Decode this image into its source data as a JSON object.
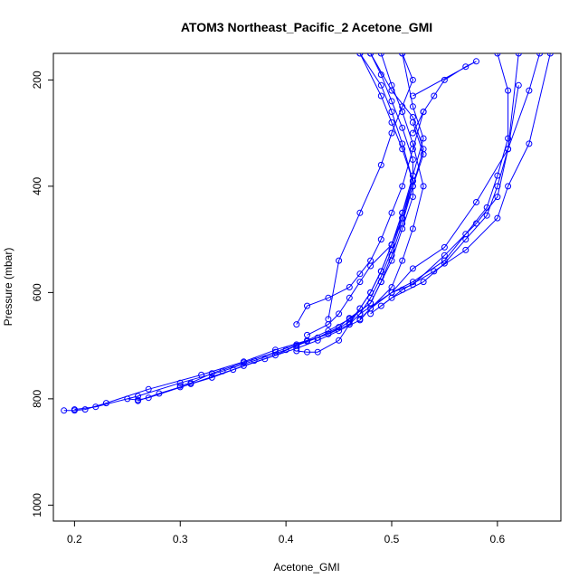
{
  "chart_data": {
    "type": "line",
    "title": "ATOM3 Northeast_Pacific_2 Acetone_GMI",
    "xlabel": "Acetone_GMI",
    "ylabel": "Pressure (mbar)",
    "xlim": [
      0.18,
      0.66
    ],
    "ylim": [
      1030,
      150
    ],
    "y_reversed": true,
    "xticks": [
      0.2,
      0.3,
      0.4,
      0.5,
      0.6
    ],
    "xtick_labels": [
      "0.2",
      "0.3",
      "0.4",
      "0.5",
      "0.6"
    ],
    "yticks": [
      200,
      400,
      600,
      800,
      1000
    ],
    "ytick_labels": [
      "200",
      "400",
      "600",
      "800",
      "1000"
    ],
    "grid": false,
    "color": "#0000ff",
    "series": [
      {
        "x": [
          0.19,
          0.2,
          0.21,
          0.23,
          0.27,
          0.32,
          0.36,
          0.39,
          0.42,
          0.44,
          0.46,
          0.48,
          0.49,
          0.5,
          0.51,
          0.52,
          0.52,
          0.51,
          0.5,
          0.49,
          0.48
        ],
        "y": [
          822,
          822,
          820,
          808,
          782,
          755,
          730,
          708,
          690,
          672,
          650,
          620,
          580,
          540,
          480,
          420,
          350,
          290,
          240,
          190,
          150
        ]
      },
      {
        "x": [
          0.2,
          0.22,
          0.26,
          0.3,
          0.34,
          0.37,
          0.4,
          0.42,
          0.44,
          0.46,
          0.47,
          0.48,
          0.49,
          0.5,
          0.51,
          0.52,
          0.51,
          0.5,
          0.49,
          0.47
        ],
        "y": [
          820,
          815,
          795,
          770,
          748,
          728,
          708,
          692,
          678,
          660,
          640,
          610,
          570,
          520,
          460,
          390,
          320,
          260,
          210,
          150
        ]
      },
      {
        "x": [
          0.25,
          0.26,
          0.27,
          0.31,
          0.35,
          0.38,
          0.41,
          0.43,
          0.45,
          0.47,
          0.48,
          0.5,
          0.51,
          0.52,
          0.53,
          0.52,
          0.51,
          0.5,
          0.49
        ],
        "y": [
          800,
          802,
          798,
          772,
          745,
          725,
          705,
          690,
          672,
          652,
          630,
          590,
          540,
          480,
          400,
          320,
          260,
          210,
          150
        ]
      },
      {
        "x": [
          0.26,
          0.28,
          0.3,
          0.33,
          0.36,
          0.39,
          0.41,
          0.43,
          0.45,
          0.46,
          0.48,
          0.49,
          0.5,
          0.51,
          0.52,
          0.53,
          0.52,
          0.5,
          0.48
        ],
        "y": [
          804,
          790,
          778,
          760,
          738,
          718,
          700,
          685,
          665,
          648,
          620,
          580,
          530,
          470,
          400,
          330,
          270,
          220,
          150
        ]
      },
      {
        "x": [
          0.3,
          0.31,
          0.33,
          0.36,
          0.39,
          0.41,
          0.44,
          0.46,
          0.47,
          0.48,
          0.49,
          0.5,
          0.51,
          0.52,
          0.53,
          0.52,
          0.51
        ],
        "y": [
          775,
          770,
          752,
          732,
          712,
          698,
          678,
          655,
          630,
          600,
          560,
          510,
          450,
          380,
          310,
          250,
          150
        ]
      },
      {
        "x": [
          0.41,
          0.42,
          0.43,
          0.45,
          0.46,
          0.47,
          0.48,
          0.49,
          0.5,
          0.51,
          0.52,
          0.51,
          0.5,
          0.49,
          0.47
        ],
        "y": [
          710,
          712,
          712,
          690,
          660,
          630,
          600,
          560,
          510,
          450,
          390,
          330,
          280,
          230,
          150
        ]
      },
      {
        "x": [
          0.41,
          0.42,
          0.44,
          0.46,
          0.47,
          0.48,
          0.49,
          0.5,
          0.51,
          0.52,
          0.53
        ],
        "y": [
          660,
          625,
          610,
          590,
          565,
          540,
          500,
          450,
          400,
          330,
          260
        ]
      },
      {
        "x": [
          0.42,
          0.44,
          0.45,
          0.46,
          0.47,
          0.48,
          0.5,
          0.51,
          0.52,
          0.53,
          0.52
        ],
        "y": [
          680,
          660,
          640,
          610,
          580,
          550,
          510,
          460,
          400,
          340,
          280
        ]
      },
      {
        "x": [
          0.44,
          0.45,
          0.47,
          0.49,
          0.5,
          0.51,
          0.52,
          0.51
        ],
        "y": [
          650,
          540,
          450,
          360,
          300,
          250,
          200,
          150
        ]
      },
      {
        "x": [
          0.47,
          0.48,
          0.5,
          0.52,
          0.55,
          0.57,
          0.59,
          0.6,
          0.61,
          0.61,
          0.6
        ],
        "y": [
          650,
          630,
          600,
          580,
          540,
          490,
          440,
          380,
          310,
          220,
          150
        ]
      },
      {
        "x": [
          0.48,
          0.5,
          0.53,
          0.55,
          0.57,
          0.59,
          0.6,
          0.61,
          0.62
        ],
        "y": [
          640,
          610,
          580,
          545,
          500,
          455,
          400,
          330,
          210
        ]
      },
      {
        "x": [
          0.49,
          0.51,
          0.54,
          0.57,
          0.6,
          0.61,
          0.63,
          0.65
        ],
        "y": [
          625,
          595,
          560,
          520,
          460,
          400,
          320,
          150
        ]
      },
      {
        "x": [
          0.5,
          0.52,
          0.55,
          0.58,
          0.6,
          0.61,
          0.62
        ],
        "y": [
          600,
          585,
          530,
          470,
          420,
          330,
          150
        ]
      },
      {
        "x": [
          0.47,
          0.5,
          0.52,
          0.55,
          0.58,
          0.61,
          0.63,
          0.64
        ],
        "y": [
          640,
          600,
          555,
          515,
          430,
          330,
          220,
          150
        ]
      },
      {
        "x": [
          0.52,
          0.53,
          0.54,
          0.55,
          0.57,
          0.58,
          0.52
        ],
        "y": [
          300,
          260,
          230,
          200,
          175,
          165,
          230
        ]
      }
    ]
  }
}
